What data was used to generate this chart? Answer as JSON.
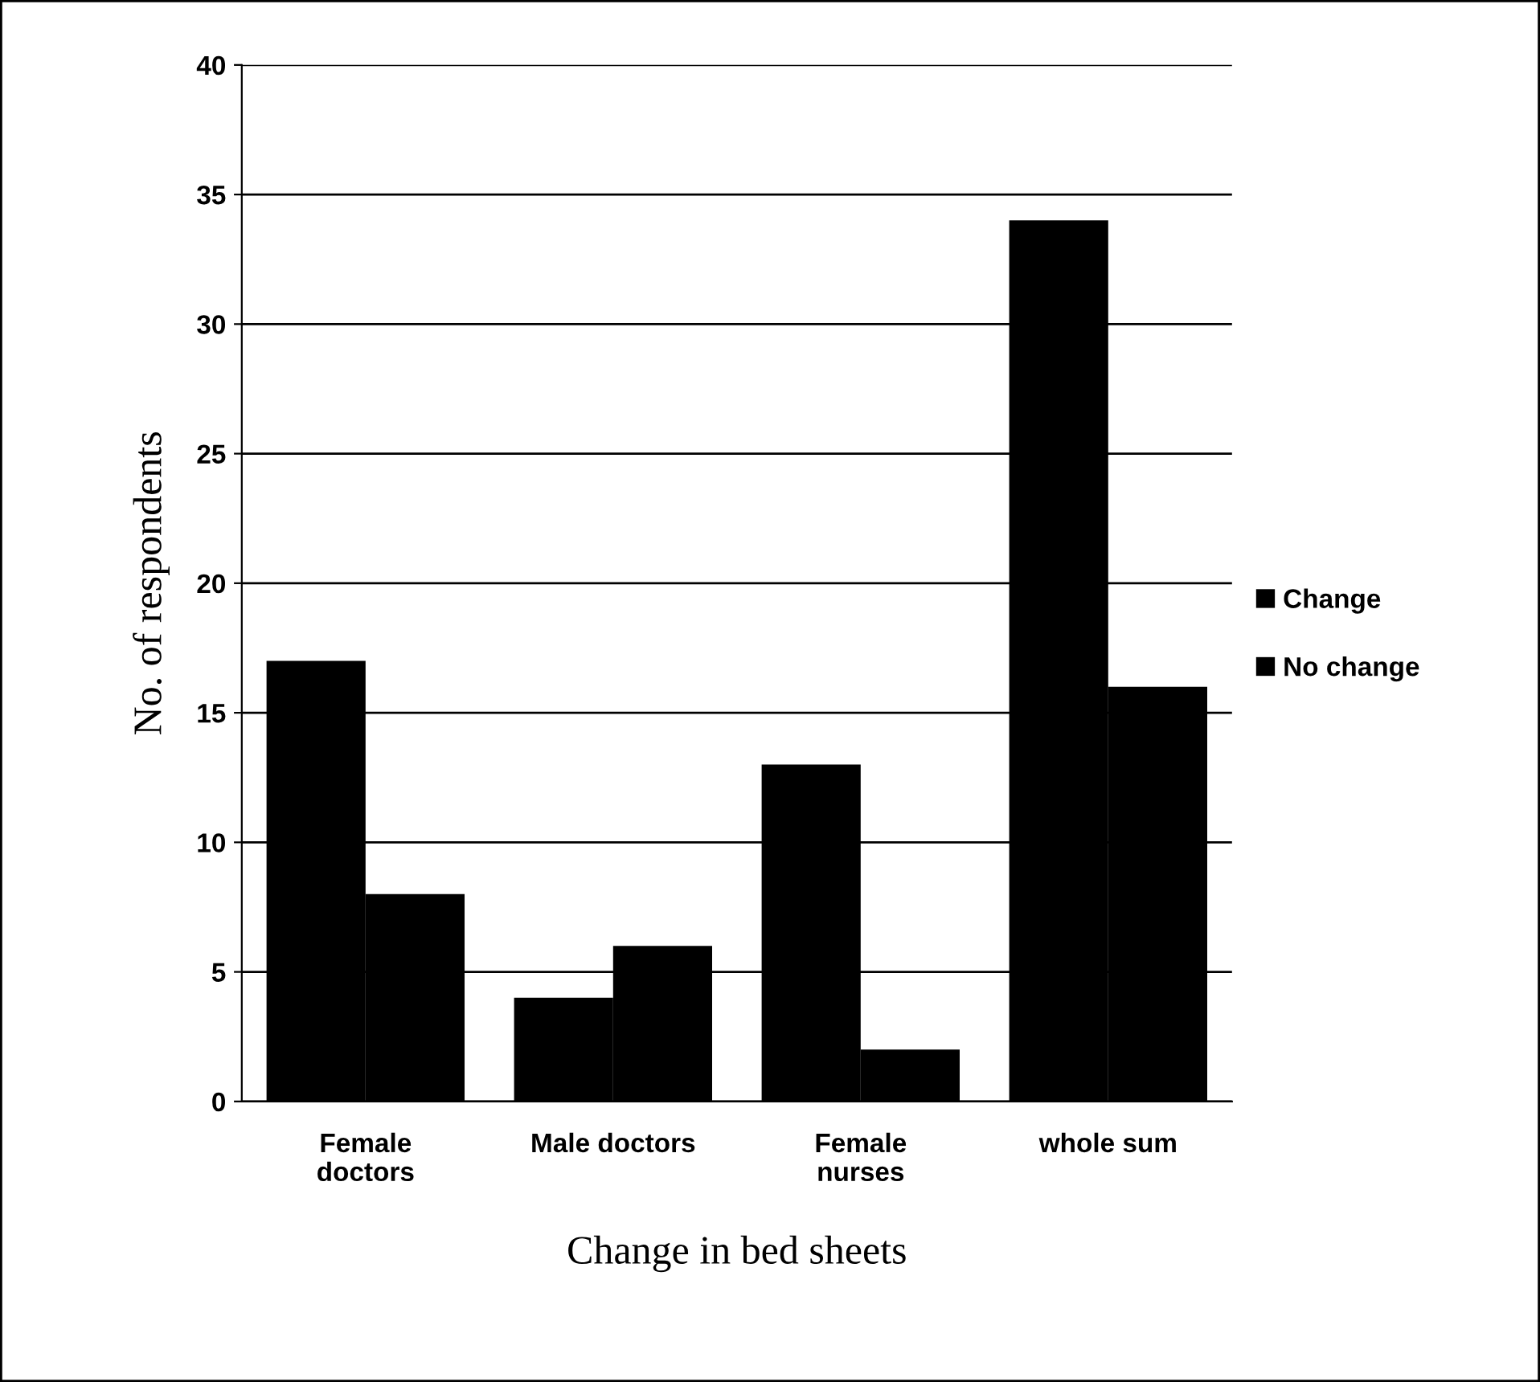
{
  "chart_data": {
    "type": "bar",
    "xlabel": "Change in bed sheets",
    "ylabel": "No. of respondents",
    "categories": [
      "Female\ndoctors",
      "Male doctors",
      "Female\nnurses",
      "whole sum"
    ],
    "series": [
      {
        "name": "Change",
        "color": "#000000",
        "values": [
          17,
          4,
          13,
          34
        ]
      },
      {
        "name": "No change",
        "color": "#000000",
        "values": [
          8,
          6,
          2,
          16
        ]
      }
    ],
    "ylim": [
      0,
      40
    ],
    "yticks": [
      0,
      5,
      10,
      15,
      20,
      25,
      30,
      35,
      40
    ],
    "grid": "y",
    "legend": "right"
  }
}
